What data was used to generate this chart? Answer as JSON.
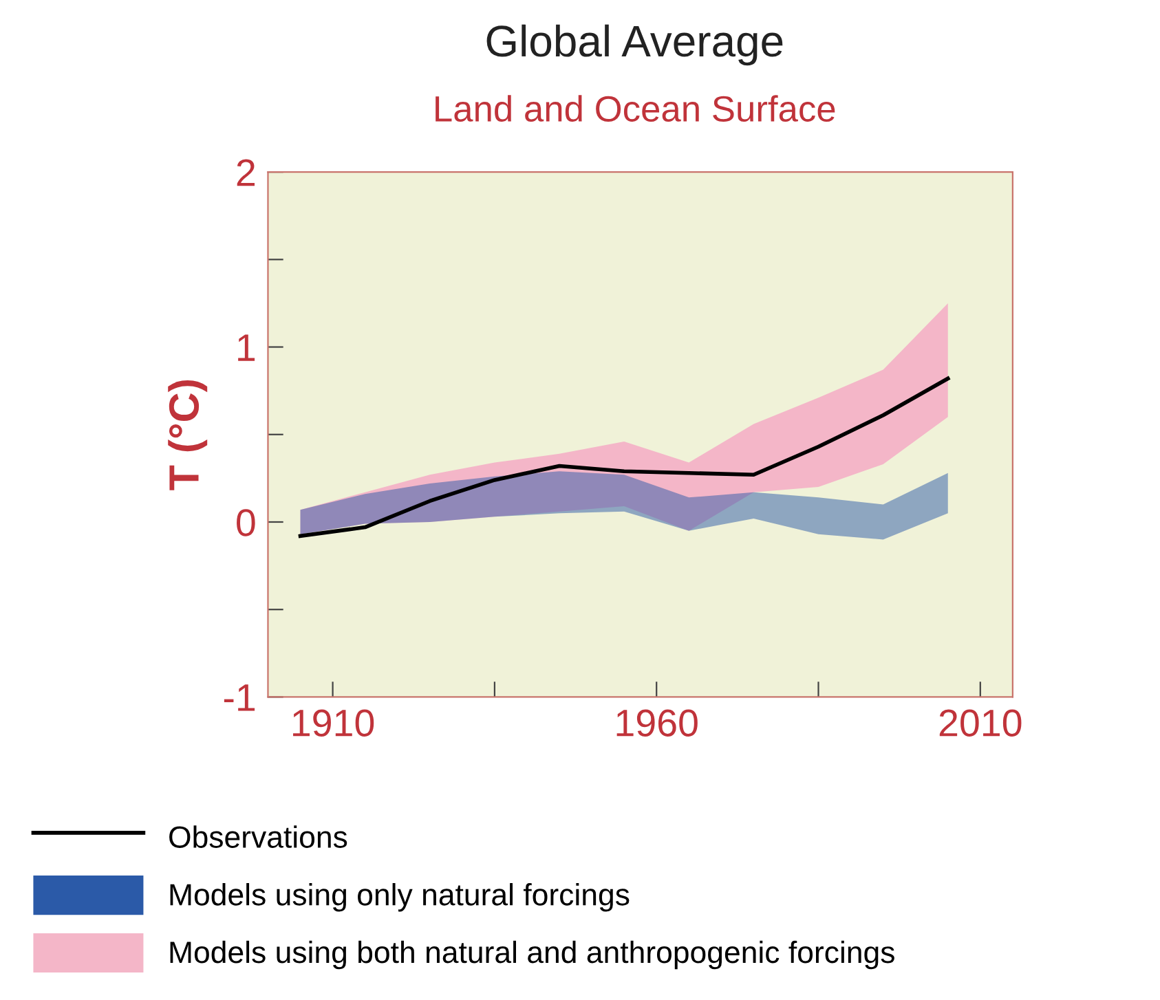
{
  "chart_data": {
    "type": "line",
    "title": "Global Average",
    "subtitle": "Land and Ocean Surface",
    "ylabel": "T (°C)",
    "x": [
      1905,
      1915,
      1925,
      1935,
      1945,
      1955,
      1965,
      1975,
      1985,
      1995,
      2005
    ],
    "series": [
      {
        "name": "Models using both natural and anthropogenic forcings",
        "color": "#f4b6c8",
        "values": [
          null,
          null,
          null,
          null,
          null,
          null,
          null,
          null,
          null,
          null,
          null
        ],
        "lower": [
          -0.07,
          -0.01,
          0.0,
          0.03,
          0.06,
          0.09,
          -0.05,
          0.17,
          0.2,
          0.33,
          0.6
        ],
        "upper": [
          0.07,
          0.17,
          0.27,
          0.34,
          0.39,
          0.46,
          0.34,
          0.56,
          0.71,
          0.87,
          1.25
        ]
      },
      {
        "name": "Models using only natural forcings",
        "color": "#2b5aa8",
        "values": [
          null,
          null,
          null,
          null,
          null,
          null,
          null,
          null,
          null,
          null,
          null
        ],
        "lower": [
          -0.07,
          -0.01,
          0.0,
          0.03,
          0.05,
          0.06,
          -0.05,
          0.02,
          -0.07,
          -0.1,
          0.05
        ],
        "upper": [
          0.07,
          0.16,
          0.22,
          0.26,
          0.29,
          0.27,
          0.14,
          0.17,
          0.14,
          0.1,
          0.28
        ]
      },
      {
        "name": "Observations",
        "color": "#000000",
        "values": [
          -0.08,
          -0.03,
          0.12,
          0.24,
          0.32,
          0.29,
          0.28,
          0.27,
          0.43,
          0.61,
          0.82
        ]
      }
    ],
    "xlim": [
      1900,
      2015
    ],
    "ylim": [
      -1,
      2
    ],
    "xticks": [
      1910,
      {
        "value": 1935,
        "label": null
      },
      1960,
      {
        "value": 1985,
        "label": null
      },
      2010
    ],
    "yticks": [
      -1,
      {
        "value": -0.5,
        "label": null
      },
      0,
      {
        "value": 0.5,
        "label": null
      },
      1,
      {
        "value": 1.5,
        "label": null
      },
      2
    ],
    "grid": false,
    "legend": "bottom"
  }
}
